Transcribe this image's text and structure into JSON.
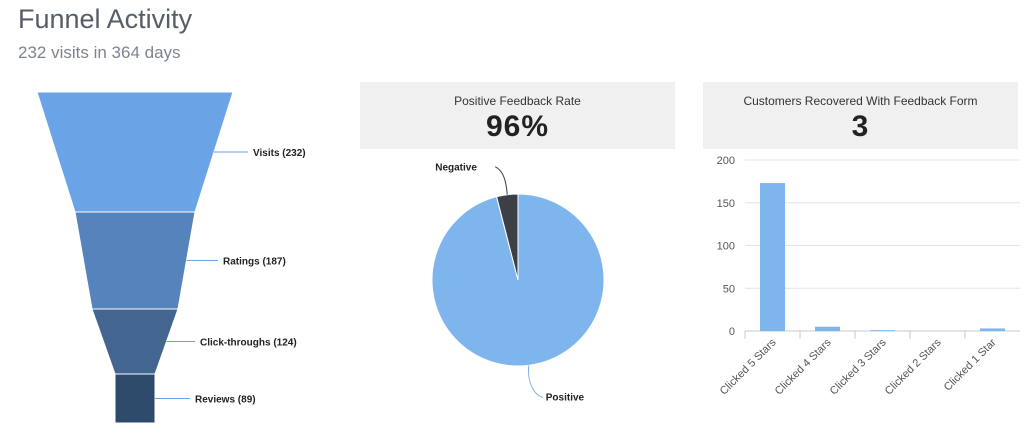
{
  "header": {
    "title": "Funnel Activity",
    "subtitle": "232 visits in 364 days"
  },
  "feedback_card": {
    "label": "Positive Feedback Rate",
    "value": "96%"
  },
  "recovered_card": {
    "label": "Customers Recovered With Feedback Form",
    "value": "3"
  },
  "colors": {
    "funnel": [
      "#6aa3e6",
      "#5584bd",
      "#42668f",
      "#2e4a6b"
    ],
    "pie_positive": "#7eb5ec",
    "pie_negative": "#3c3f45",
    "bar": "#7eb5ec"
  },
  "chart_data": [
    {
      "type": "funnel",
      "stages": [
        {
          "label": "Visits (232)",
          "value": 232
        },
        {
          "label": "Ratings (187)",
          "value": 187
        },
        {
          "label": "Click-throughs (124)",
          "value": 124
        },
        {
          "label": "Reviews (89)",
          "value": 89
        }
      ]
    },
    {
      "type": "pie",
      "title": "Positive Feedback Rate",
      "slices": [
        {
          "label": "Positive",
          "value": 96
        },
        {
          "label": "Negative",
          "value": 4
        }
      ]
    },
    {
      "type": "bar",
      "title": "Customers Recovered With Feedback Form",
      "categories": [
        "Clicked 5 Stars",
        "Clicked 4 Stars",
        "Clicked 3 Stars",
        "Clicked 2 Stars",
        "Clicked 1 Star"
      ],
      "values": [
        173,
        5,
        1,
        0,
        3
      ],
      "ylim": [
        0,
        200
      ],
      "yticks": [
        0,
        50,
        100,
        150,
        200
      ],
      "grid": true
    }
  ]
}
